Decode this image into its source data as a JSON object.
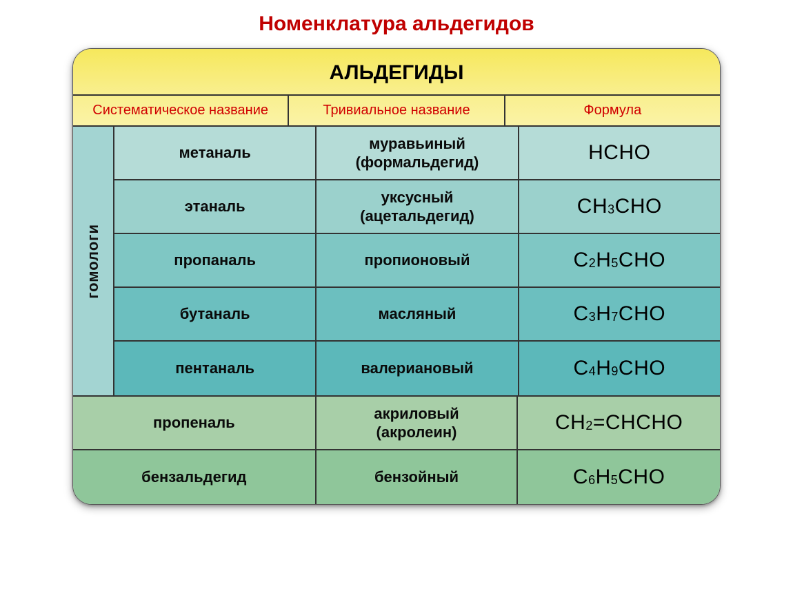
{
  "title": "Номенклатура альдегидов",
  "table": {
    "header": "АЛЬДЕГИДЫ",
    "columns": [
      "Систематическое название",
      "Тривиальное название",
      "Формула"
    ],
    "vertical_label": "гомологи",
    "colors": {
      "header_bg_top": "#f6e85c",
      "header_bg_bottom": "#f9ef8f",
      "title_color": "#c00000",
      "subheader_color": "#d00000",
      "vert_bg": "#a3d4d2",
      "row_bg": [
        "#b5dcd7",
        "#9bd1cc",
        "#7fc7c4",
        "#6cbfbf",
        "#5cb8ba",
        "#a8cfa8",
        "#8fc69a"
      ],
      "border": "#333333"
    },
    "upper_rows": [
      {
        "sys": "метаналь",
        "triv_main": "муравьиный",
        "triv_sub": "(формальдегид)",
        "formula": "HCHO"
      },
      {
        "sys": "этаналь",
        "triv_main": "уксусный",
        "triv_sub": "(ацетальдегид)",
        "formula": "CH<sub>3</sub>CHO"
      },
      {
        "sys": "пропаналь",
        "triv_main": "пропионовый",
        "triv_sub": "",
        "formula": "C<sub>2</sub>H<sub>5</sub>CHO"
      },
      {
        "sys": "бутаналь",
        "triv_main": "масляный",
        "triv_sub": "",
        "formula": "C<sub>3</sub>H<sub>7</sub>CHO"
      },
      {
        "sys": "пентаналь",
        "triv_main": "валериановый",
        "triv_sub": "",
        "formula": "C<sub>4</sub>H<sub>9</sub>CHO"
      }
    ],
    "lower_rows": [
      {
        "sys": "пропеналь",
        "triv_main": "акриловый",
        "triv_sub": "(акролеин)",
        "formula": "CH<sub>2</sub>=CHCHO"
      },
      {
        "sys": "бензальдегид",
        "triv_main": "бензойный",
        "triv_sub": "",
        "formula": "C<sub>6</sub>H<sub>5</sub>CHO"
      }
    ]
  }
}
